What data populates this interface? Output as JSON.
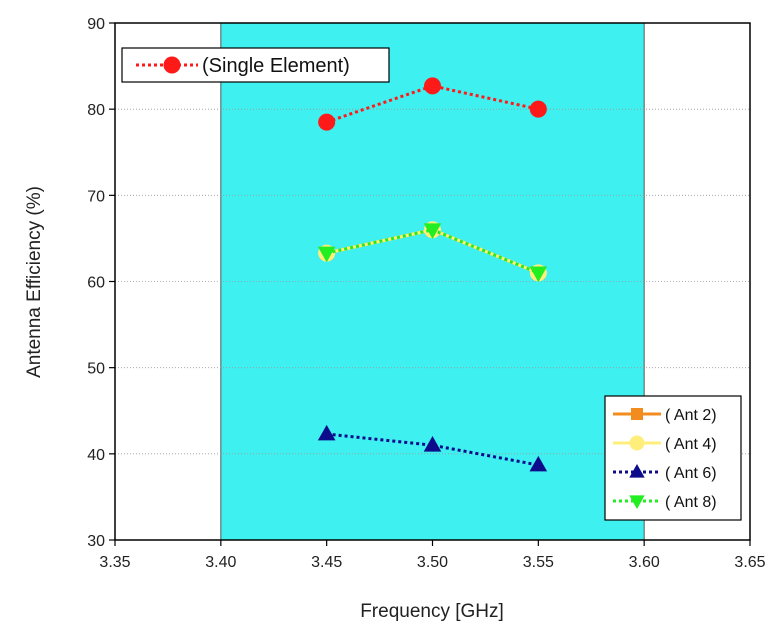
{
  "chart_data": {
    "type": "line",
    "xlabel": "Frequency [GHz]",
    "ylabel": "Antenna Efficiency (%)",
    "xlim": [
      3.35,
      3.65
    ],
    "ylim": [
      30,
      90
    ],
    "x_ticks": [
      "3.35",
      "3.40",
      "3.45",
      "3.50",
      "3.55",
      "3.60",
      "3.65"
    ],
    "y_ticks": [
      "30",
      "40",
      "50",
      "60",
      "70",
      "80",
      "90"
    ],
    "grid": "horizontal-dotted",
    "highlight_band": {
      "x_range": [
        3.4,
        3.6
      ],
      "color": "#3ff0f0"
    },
    "x": [
      3.45,
      3.5,
      3.55
    ],
    "series": [
      {
        "name": "(Single Element)",
        "values": [
          78.5,
          82.7,
          80.0
        ],
        "color": "#ff1a1a",
        "marker": "circle",
        "line": "dotted"
      },
      {
        "name": "( Ant 2)",
        "values": [
          63.3,
          66.0,
          61.0
        ],
        "color": "#f28c1e",
        "marker": "square",
        "line": "solid"
      },
      {
        "name": "( Ant 4)",
        "values": [
          63.3,
          66.0,
          61.0
        ],
        "color": "#ffef7a",
        "marker": "circle",
        "line": "solid"
      },
      {
        "name": "( Ant 6)",
        "values": [
          42.3,
          41.0,
          38.7
        ],
        "color": "#0d0d8c",
        "marker": "triangle-up",
        "line": "dotted"
      },
      {
        "name": "( Ant 8)",
        "values": [
          63.3,
          66.0,
          61.0
        ],
        "color": "#22ee22",
        "marker": "triangle-down",
        "line": "dotted"
      }
    ],
    "legends": [
      {
        "position": "top-left",
        "entries": [
          "(Single Element)"
        ]
      },
      {
        "position": "bottom-right",
        "entries": [
          "( Ant 2)",
          "( Ant 4)",
          "( Ant 6)",
          "( Ant 8)"
        ]
      }
    ]
  }
}
